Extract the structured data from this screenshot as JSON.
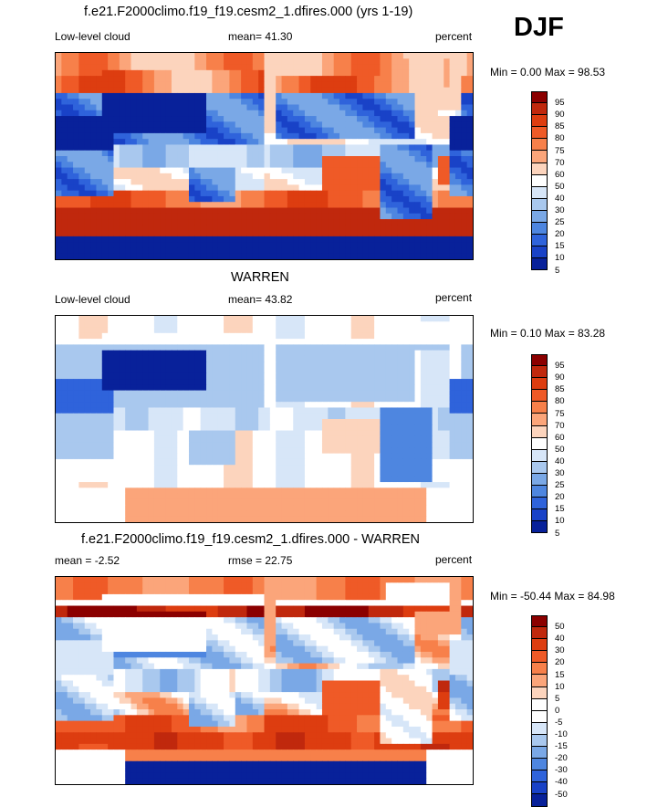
{
  "season_label": "DJF",
  "chart_data": [
    {
      "type": "heatmap",
      "title": "f.e21.F2000climo.f19_f19.cesm2_1.dfires.000 (yrs 1-19)",
      "left_label": "Low-level cloud",
      "stat_label": "mean=  41.30",
      "units": "percent",
      "minmax_label": "Min =   0.00 Max =  98.53",
      "field": "model",
      "colorbar_levels": [
        "95",
        "90",
        "85",
        "80",
        "75",
        "70",
        "60",
        "50",
        "40",
        "30",
        "25",
        "20",
        "15",
        "10",
        "5"
      ],
      "colors": [
        "#8b0000",
        "#c0280d",
        "#dd3d10",
        "#ef5a27",
        "#f7804a",
        "#fba57a",
        "#fcd4bd",
        "#ffffff",
        "#d7e6f8",
        "#a9c8ee",
        "#7aa8e6",
        "#4e86e0",
        "#2f63db",
        "#1942c7",
        "#08219a"
      ]
    },
    {
      "type": "heatmap",
      "title": "WARREN",
      "left_label": "Low-level cloud",
      "stat_label": "mean=  43.82",
      "units": "percent",
      "minmax_label": "Min =   0.10 Max =  83.28",
      "field": "obs",
      "colorbar_levels": [
        "95",
        "90",
        "85",
        "80",
        "75",
        "70",
        "60",
        "50",
        "40",
        "30",
        "25",
        "20",
        "15",
        "10",
        "5"
      ],
      "colors": [
        "#8b0000",
        "#c0280d",
        "#dd3d10",
        "#ef5a27",
        "#f7804a",
        "#fba57a",
        "#fcd4bd",
        "#ffffff",
        "#d7e6f8",
        "#a9c8ee",
        "#7aa8e6",
        "#4e86e0",
        "#2f63db",
        "#1942c7",
        "#08219a"
      ]
    },
    {
      "type": "heatmap",
      "title": "f.e21.F2000climo.f19_f19.cesm2_1.dfires.000 - WARREN",
      "left_label": "mean =  -2.52",
      "stat_label": "rmse =  22.75",
      "units": "percent",
      "minmax_label": "Min = -50.44 Max =  84.98",
      "field": "diff",
      "colorbar_levels": [
        "50",
        "40",
        "30",
        "20",
        "15",
        "10",
        "5",
        "0",
        "-5",
        "-10",
        "-15",
        "-20",
        "-30",
        "-40",
        "-50"
      ],
      "colors": [
        "#8b0000",
        "#c0280d",
        "#dd3d10",
        "#ef5a27",
        "#f7804a",
        "#fba57a",
        "#fcd4bd",
        "#ffffff",
        "#ffffff",
        "#d7e6f8",
        "#a9c8ee",
        "#7aa8e6",
        "#4e86e0",
        "#2f63db",
        "#1942c7",
        "#08219a"
      ]
    }
  ]
}
